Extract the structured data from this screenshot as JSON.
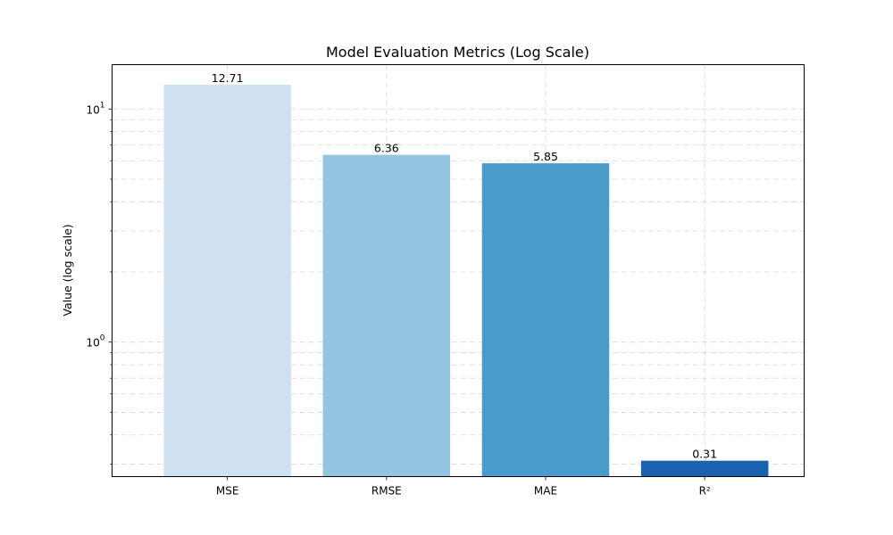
{
  "chart_data": {
    "type": "bar",
    "title": "Model Evaluation Metrics (Log Scale)",
    "xlabel": "",
    "ylabel": "Value (log scale)",
    "y_scale": "log",
    "ylim": [
      0.265,
      15.5
    ],
    "grid": true,
    "categories": [
      "MSE",
      "RMSE",
      "MAE",
      "R²"
    ],
    "values": [
      12.71,
      6.36,
      5.85,
      0.31
    ],
    "data_labels": [
      "12.71",
      "6.36",
      "5.85",
      "0.31"
    ],
    "colors": [
      "#cfe1f0",
      "#94c4df",
      "#4a9bcc",
      "#1a62ab"
    ],
    "y_major_ticks": [
      {
        "value": 1,
        "base": "10",
        "exp": "0"
      },
      {
        "value": 10,
        "base": "10",
        "exp": "1"
      }
    ],
    "y_minor_ticks": [
      0.3,
      0.4,
      0.5,
      0.6,
      0.7,
      0.8,
      0.9,
      2,
      3,
      4,
      5,
      6,
      7,
      8,
      9
    ]
  }
}
